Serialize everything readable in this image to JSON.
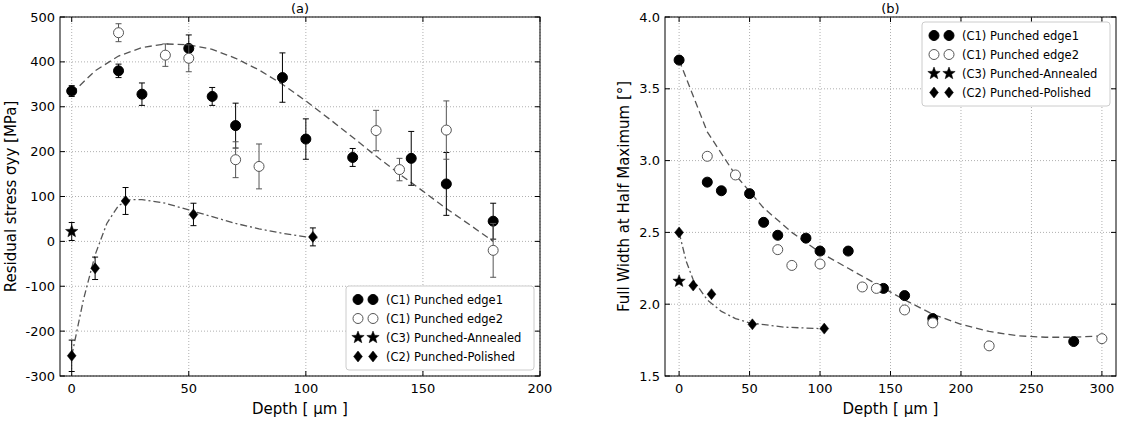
{
  "chart_data": [
    {
      "type": "scatter",
      "title": "(a)",
      "x_label": "Depth [ μm ]",
      "y_label": "Residual stress σyy [MPa]",
      "xlim": [
        -5,
        200
      ],
      "ylim": [
        -300,
        500
      ],
      "xticks": [
        0,
        50,
        100,
        150,
        200
      ],
      "yticks": [
        -300,
        -200,
        -100,
        0,
        100,
        200,
        300,
        400,
        500
      ],
      "grid": true,
      "legend": "lower right",
      "series": [
        {
          "name": "(C1) Punched edge1",
          "color": "#000000",
          "marker": "circle",
          "x": [
            0,
            20,
            30,
            50,
            60,
            70,
            90,
            100,
            120,
            145,
            160,
            180
          ],
          "values": [
            335,
            380,
            328,
            430,
            323,
            258,
            365,
            228,
            187,
            185,
            128,
            45
          ],
          "errors": [
            12,
            15,
            25,
            30,
            20,
            50,
            55,
            45,
            20,
            60,
            70,
            40
          ]
        },
        {
          "name": "(C1) Punched edge2",
          "color": "#555555",
          "marker": "circle-open",
          "x": [
            20,
            40,
            50,
            70,
            80,
            130,
            140,
            160,
            180
          ],
          "values": [
            465,
            415,
            408,
            182,
            167,
            247,
            160,
            248,
            -20
          ],
          "errors": [
            20,
            25,
            30,
            40,
            50,
            45,
            25,
            65,
            60
          ]
        },
        {
          "name": "(C3) Punched-Annealed",
          "color": "#000000",
          "marker": "star",
          "x": [
            0
          ],
          "values": [
            22
          ],
          "errors": [
            20
          ]
        },
        {
          "name": "(C2) Punched-Polished",
          "color": "#000000",
          "marker": "diamond",
          "x": [
            0,
            10,
            23,
            52,
            103
          ],
          "values": [
            -255,
            -60,
            90,
            60,
            10
          ],
          "errors": [
            35,
            25,
            30,
            25,
            20
          ]
        },
        {
          "type": "line",
          "color": "#555555",
          "line_style": "dashed",
          "x": [
            0,
            10,
            20,
            30,
            40,
            50,
            60,
            70,
            80,
            90,
            100,
            110,
            120,
            130,
            140,
            150,
            160,
            170,
            180
          ],
          "values": [
            330,
            380,
            413,
            432,
            440,
            438,
            428,
            408,
            382,
            350,
            313,
            273,
            232,
            190,
            150,
            112,
            73,
            37,
            0
          ]
        },
        {
          "type": "line",
          "color": "#555555",
          "line_style": "dashdot",
          "x": [
            0,
            5,
            10,
            15,
            20,
            25,
            30,
            40,
            50,
            60,
            70,
            80,
            90,
            100,
            105
          ],
          "values": [
            -255,
            -130,
            -30,
            40,
            80,
            93,
            93,
            85,
            70,
            55,
            40,
            28,
            18,
            10,
            8
          ]
        }
      ]
    },
    {
      "type": "scatter",
      "title": "(b)",
      "x_label": "Depth [ μm ]",
      "y_label": "Full Width at Half Maximum [°]",
      "xlim": [
        -10,
        310
      ],
      "ylim": [
        1.5,
        4
      ],
      "xticks": [
        0,
        50,
        100,
        150,
        200,
        250,
        300
      ],
      "yticks": [
        1.5,
        {
          "value": 2,
          "label": "2.0"
        },
        2.5,
        {
          "value": 3,
          "label": "3.0"
        },
        3.5,
        {
          "value": 4,
          "label": "4.0"
        }
      ],
      "grid": true,
      "legend": "upper right",
      "series": [
        {
          "name": "(C1) Punched edge1",
          "color": "#000000",
          "marker": "circle",
          "x": [
            0,
            20,
            30,
            50,
            60,
            70,
            90,
            100,
            120,
            145,
            160,
            180,
            280
          ],
          "values": [
            3.7,
            2.85,
            2.79,
            2.77,
            2.57,
            2.48,
            2.46,
            2.37,
            2.37,
            2.11,
            2.06,
            1.9,
            1.74
          ]
        },
        {
          "name": "(C1) Punched edge2",
          "color": "#555555",
          "marker": "circle-open",
          "x": [
            20,
            40,
            70,
            80,
            100,
            130,
            140,
            160,
            180,
            220,
            300
          ],
          "values": [
            3.03,
            2.9,
            2.38,
            2.27,
            2.28,
            2.12,
            2.11,
            1.96,
            1.87,
            1.71,
            1.76
          ]
        },
        {
          "name": "(C3) Punched-Annealed",
          "color": "#000000",
          "marker": "star",
          "x": [
            0
          ],
          "values": [
            2.16
          ]
        },
        {
          "name": "(C2) Punched-Polished",
          "color": "#000000",
          "marker": "diamond",
          "x": [
            0,
            10,
            23,
            52,
            103
          ],
          "values": [
            2.5,
            2.13,
            2.07,
            1.86,
            1.83
          ]
        },
        {
          "type": "line",
          "color": "#555555",
          "line_style": "dashed",
          "x": [
            0,
            20,
            40,
            60,
            80,
            100,
            120,
            140,
            160,
            180,
            200,
            220,
            240,
            260,
            280,
            300
          ],
          "values": [
            3.7,
            3.2,
            2.9,
            2.67,
            2.5,
            2.36,
            2.25,
            2.14,
            2.03,
            1.93,
            1.86,
            1.81,
            1.78,
            1.77,
            1.77,
            1.78
          ]
        },
        {
          "type": "line",
          "color": "#555555",
          "line_style": "dashdot",
          "x": [
            0,
            5,
            10,
            20,
            30,
            40,
            50,
            75,
            100
          ],
          "values": [
            2.5,
            2.3,
            2.17,
            2.03,
            1.95,
            1.9,
            1.87,
            1.84,
            1.83
          ]
        }
      ]
    }
  ]
}
